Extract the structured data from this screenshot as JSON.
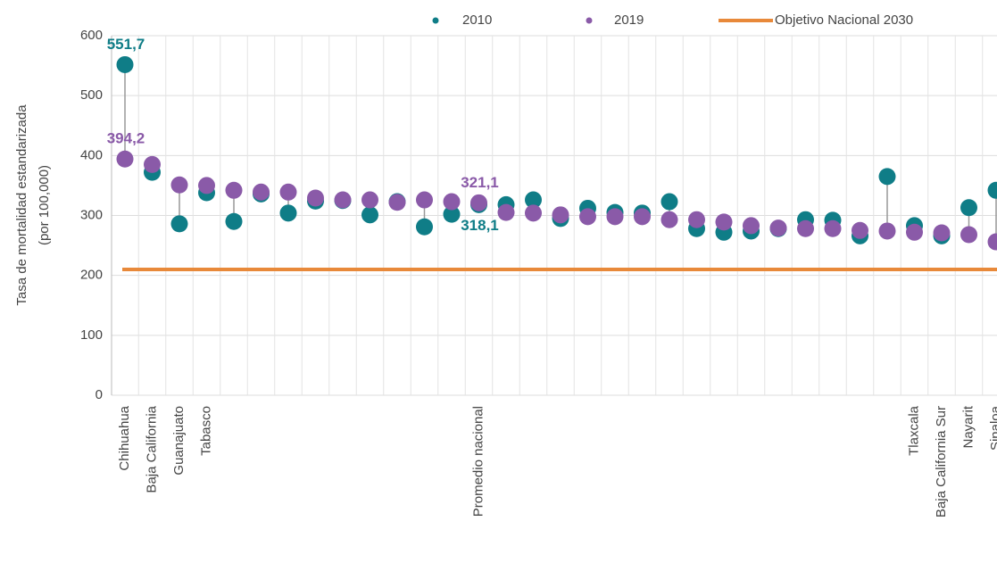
{
  "chart_data": {
    "type": "dumbbell",
    "y_label": [
      "Tasa de mortalidad estandarizada",
      "(por 100,000)"
    ],
    "categories": [
      "Chihuahua",
      "Baja California",
      "Guanajuato",
      "Tabasco",
      null,
      null,
      null,
      null,
      null,
      null,
      null,
      null,
      null,
      "Promedio nacional",
      null,
      null,
      null,
      null,
      null,
      null,
      null,
      null,
      null,
      null,
      null,
      null,
      null,
      null,
      null,
      "Tlaxcala",
      "Baja California Sur",
      "Nayarit",
      "Sinaloa"
    ],
    "series": [
      {
        "name": "2010",
        "color": "#0f7d87",
        "values": [
          551.7,
          372,
          286,
          338,
          290,
          336,
          304,
          324,
          325,
          301,
          323,
          281,
          302,
          318.1,
          318,
          326,
          295,
          312,
          305,
          304,
          323,
          278,
          272,
          274,
          278,
          293,
          292,
          266,
          365,
          283,
          266,
          313,
          342
        ],
        "value_labels": [
          "551,7",
          null,
          null,
          null,
          null,
          null,
          null,
          null,
          null,
          null,
          null,
          null,
          null,
          "318,1",
          null,
          null,
          null,
          null,
          null,
          null,
          null,
          null,
          null,
          null,
          null,
          null,
          null,
          null,
          null,
          null,
          null,
          null,
          null
        ]
      },
      {
        "name": "2019",
        "color": "#8a5aa8",
        "values": [
          394.2,
          385,
          351,
          350,
          342,
          339,
          339,
          329,
          326,
          326,
          322,
          326,
          323,
          321.1,
          305,
          304,
          301,
          298,
          298,
          298,
          293,
          293,
          289,
          283,
          279,
          278,
          278,
          275,
          274,
          272,
          271,
          268,
          256
        ],
        "value_labels": [
          "394,2",
          null,
          null,
          null,
          null,
          null,
          null,
          null,
          null,
          null,
          null,
          null,
          null,
          "321,1",
          null,
          null,
          null,
          null,
          null,
          null,
          null,
          null,
          null,
          null,
          null,
          null,
          null,
          null,
          null,
          null,
          null,
          null,
          null
        ]
      }
    ],
    "target": {
      "name": "Objetivo Nacional 2030",
      "value": 210,
      "color": "#e8893a"
    },
    "ylim": [
      0,
      600
    ],
    "yticks": [
      0,
      100,
      200,
      300,
      400,
      500,
      600
    ],
    "grid": true
  }
}
